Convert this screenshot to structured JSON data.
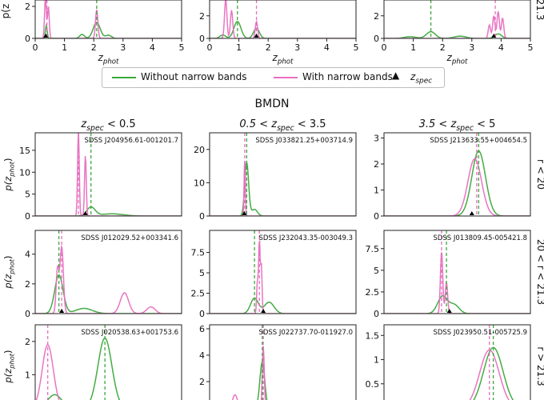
{
  "colors": {
    "green": "#3aa83a",
    "pink": "#e86ec0",
    "marker": "#000000"
  },
  "legend": {
    "items": [
      {
        "label": "Without narrow bands",
        "color": "#3aa83a",
        "kind": "line"
      },
      {
        "label": "With narrow bands",
        "color": "#e86ec0",
        "kind": "line"
      },
      {
        "label": "z",
        "sub": "spec",
        "color": "#000000",
        "kind": "triangle"
      }
    ]
  },
  "section_title": "BMDN",
  "column_headers": [
    {
      "pre": "z",
      "sub": "spec",
      "post": " < 0.5"
    },
    {
      "pre": "0.5 < z",
      "sub": "spec",
      "post": " < 3.5"
    },
    {
      "pre": "3.5 < z",
      "sub": "spec",
      "post": " < 5"
    }
  ],
  "row_labels": [
    "r < 20",
    "20 < r < 21.3",
    "r > 21.3"
  ],
  "top_row_label": "21.3",
  "ylabel": {
    "pre": "p(z",
    "sub": "phot",
    "post": ")"
  },
  "top_ylabel": "p(z",
  "xlabel": {
    "pre": "z",
    "sub": "phot"
  },
  "chart_data": [
    {
      "id": "top-1",
      "type": "line",
      "xlim": [
        0,
        5
      ],
      "ylim": [
        0,
        2.4
      ],
      "yticks": [
        0,
        2
      ],
      "xticks": [
        0,
        1,
        2,
        3,
        4,
        5
      ],
      "title": "",
      "zspec": 0.36,
      "green_peak_x": 2.1,
      "pink_peak_x": 0.4,
      "series": [
        {
          "name": "Without narrow bands",
          "color_key": "green",
          "components": [
            [
              0.38,
              0.03,
              0.8
            ],
            [
              2.1,
              0.12,
              1.0
            ],
            [
              1.6,
              0.08,
              0.25
            ],
            [
              2.5,
              0.1,
              0.2
            ]
          ]
        },
        {
          "name": "With narrow bands",
          "color_key": "pink",
          "components": [
            [
              0.35,
              0.03,
              2.6
            ],
            [
              0.45,
              0.03,
              2.0
            ],
            [
              2.1,
              0.04,
              1.8
            ]
          ]
        }
      ]
    },
    {
      "id": "top-2",
      "type": "line",
      "xlim": [
        0,
        5
      ],
      "ylim": [
        0,
        3.4
      ],
      "yticks": [
        0,
        2
      ],
      "xticks": [
        0,
        1,
        2,
        3,
        4,
        5
      ],
      "title": "",
      "zspec": 1.6,
      "green_peak_x": 0.95,
      "pink_peak_x": 1.6,
      "series": [
        {
          "name": "Without narrow bands",
          "color_key": "green",
          "components": [
            [
              0.95,
              0.12,
              1.5
            ],
            [
              1.6,
              0.1,
              0.9
            ],
            [
              0.45,
              0.1,
              0.3
            ]
          ]
        },
        {
          "name": "With narrow bands",
          "color_key": "pink",
          "components": [
            [
              0.55,
              0.04,
              3.5
            ],
            [
              0.75,
              0.04,
              2.5
            ],
            [
              1.6,
              0.04,
              1.5
            ]
          ]
        }
      ]
    },
    {
      "id": "top-3",
      "type": "line",
      "xlim": [
        0,
        5
      ],
      "ylim": [
        0,
        3.4
      ],
      "yticks": [
        0,
        2
      ],
      "xticks": [
        0,
        1,
        2,
        3,
        4,
        5
      ],
      "title": "",
      "zspec": 3.75,
      "green_peak_x": 1.6,
      "pink_peak_x": 3.8,
      "series": [
        {
          "name": "Without narrow bands",
          "color_key": "green",
          "components": [
            [
              1.6,
              0.15,
              0.6
            ],
            [
              3.9,
              0.12,
              0.4
            ],
            [
              2.6,
              0.2,
              0.2
            ],
            [
              0.9,
              0.2,
              0.15
            ]
          ]
        },
        {
          "name": "With narrow bands",
          "color_key": "pink",
          "components": [
            [
              3.75,
              0.04,
              2.0
            ],
            [
              3.9,
              0.04,
              2.4
            ],
            [
              4.05,
              0.04,
              1.8
            ],
            [
              3.6,
              0.04,
              1.2
            ]
          ]
        }
      ]
    },
    {
      "id": "bmdn-r1-c1",
      "type": "line",
      "xlim": [
        0,
        1.05
      ],
      "ylim": [
        0,
        19
      ],
      "yticks": [
        0,
        5,
        10,
        15
      ],
      "title": "SDSS J204956.61-001201.7",
      "zspec": 0.36,
      "green_peak_x": 0.4,
      "pink_peak_x": 0.31,
      "series": [
        {
          "name": "Without narrow bands",
          "color_key": "green",
          "components": [
            [
              0.4,
              0.03,
              2.0
            ],
            [
              0.55,
              0.08,
              0.5
            ]
          ]
        },
        {
          "name": "With narrow bands",
          "color_key": "pink",
          "components": [
            [
              0.31,
              0.006,
              19.5
            ],
            [
              0.36,
              0.006,
              14.0
            ]
          ]
        }
      ]
    },
    {
      "id": "bmdn-r1-c2",
      "type": "line",
      "xlim": [
        0.5,
        3.5
      ],
      "ylim": [
        0,
        25
      ],
      "yticks": [
        0,
        10,
        20
      ],
      "title": "SDSS J033821.25+003714.9",
      "zspec": 1.21,
      "green_peak_x": 1.26,
      "pink_peak_x": 1.22,
      "series": [
        {
          "name": "Without narrow bands",
          "color_key": "green",
          "components": [
            [
              1.26,
              0.04,
              16.0
            ],
            [
              1.42,
              0.06,
              2.0
            ]
          ]
        },
        {
          "name": "With narrow bands",
          "color_key": "pink",
          "components": [
            [
              1.22,
              0.012,
              18.0
            ]
          ]
        }
      ]
    },
    {
      "id": "bmdn-r1-c3",
      "type": "line",
      "xlim": [
        3.5,
        5.0
      ],
      "ylim": [
        0,
        3.2
      ],
      "yticks": [
        0,
        1,
        2,
        3
      ],
      "title": "SDSS J213633.55+004654.5",
      "zspec": 4.4,
      "green_peak_x": 4.47,
      "pink_peak_x": 4.45,
      "series": [
        {
          "name": "Without narrow bands",
          "color_key": "green",
          "components": [
            [
              4.47,
              0.07,
              2.5
            ]
          ]
        },
        {
          "name": "With narrow bands",
          "color_key": "pink",
          "components": [
            [
              4.43,
              0.07,
              2.2
            ]
          ]
        }
      ]
    },
    {
      "id": "bmdn-r2-c1",
      "type": "line",
      "xlim": [
        0,
        1.05
      ],
      "ylim": [
        0,
        5.6
      ],
      "yticks": [
        0,
        2,
        4
      ],
      "title": "SDSS J012029.52+003341.6",
      "zspec": 0.19,
      "green_peak_x": 0.17,
      "pink_peak_x": 0.19,
      "series": [
        {
          "name": "Without narrow bands",
          "color_key": "green",
          "components": [
            [
              0.17,
              0.03,
              2.6
            ],
            [
              0.35,
              0.06,
              0.35
            ]
          ]
        },
        {
          "name": "With narrow bands",
          "color_key": "pink",
          "components": [
            [
              0.19,
              0.012,
              4.5
            ],
            [
              0.16,
              0.01,
              3.0
            ],
            [
              0.64,
              0.03,
              1.4
            ],
            [
              0.83,
              0.03,
              0.45
            ]
          ]
        }
      ]
    },
    {
      "id": "bmdn-r2-c2",
      "type": "line",
      "xlim": [
        0.5,
        3.5
      ],
      "ylim": [
        0,
        10.2
      ],
      "yticks": [
        0,
        2.5,
        5,
        7.5
      ],
      "title": "SDSS J232043.35-003049.3",
      "zspec": 1.6,
      "green_peak_x": 1.42,
      "pink_peak_x": 1.52,
      "series": [
        {
          "name": "Without narrow bands",
          "color_key": "green",
          "components": [
            [
              1.42,
              0.08,
              1.9
            ],
            [
              1.72,
              0.1,
              1.4
            ]
          ]
        },
        {
          "name": "With narrow bands",
          "color_key": "pink",
          "components": [
            [
              1.52,
              0.015,
              9.0
            ],
            [
              1.56,
              0.015,
              6.0
            ],
            [
              1.48,
              0.015,
              4.0
            ]
          ]
        }
      ]
    },
    {
      "id": "bmdn-r2-c3",
      "type": "line",
      "xlim": [
        3.5,
        5.0
      ],
      "ylim": [
        0,
        9.6
      ],
      "yticks": [
        0,
        2.5,
        5,
        7.5
      ],
      "title": "SDSS J013809.45-005421.8",
      "zspec": 4.17,
      "green_peak_x": 4.14,
      "pink_peak_x": 4.09,
      "series": [
        {
          "name": "Without narrow bands",
          "color_key": "green",
          "components": [
            [
              4.1,
              0.05,
              2.0
            ],
            [
              4.22,
              0.05,
              1.0
            ]
          ]
        },
        {
          "name": "With narrow bands",
          "color_key": "pink",
          "components": [
            [
              4.09,
              0.012,
              7.2
            ],
            [
              4.14,
              0.012,
              3.6
            ]
          ]
        }
      ]
    },
    {
      "id": "bmdn-r3-c1",
      "type": "line",
      "xlim": [
        0,
        1.05
      ],
      "ylim": [
        0,
        2.5
      ],
      "yticks": [
        0,
        1,
        2
      ],
      "title": "SDSS J020538.63+001753.6",
      "zspec": 0.1,
      "green_peak_x": 0.5,
      "pink_peak_x": 0.09,
      "series": [
        {
          "name": "Without narrow bands",
          "color_key": "green",
          "components": [
            [
              0.5,
              0.05,
              2.1
            ],
            [
              0.14,
              0.05,
              0.4
            ],
            [
              0.85,
              0.08,
              0.2
            ]
          ]
        },
        {
          "name": "With narrow bands",
          "color_key": "pink",
          "components": [
            [
              0.09,
              0.04,
              1.9
            ],
            [
              0.6,
              0.06,
              0.15
            ]
          ]
        }
      ]
    },
    {
      "id": "bmdn-r3-c2",
      "type": "line",
      "xlim": [
        0.5,
        3.5
      ],
      "ylim": [
        0,
        6.3
      ],
      "yticks": [
        0,
        2,
        4,
        6
      ],
      "title": "SDSS J022737.70-011927.0",
      "zspec": 1.6,
      "green_peak_x": 1.58,
      "pink_peak_x": 1.6,
      "series": [
        {
          "name": "Without narrow bands",
          "color_key": "green",
          "components": [
            [
              1.58,
              0.05,
              3.5
            ],
            [
              1.0,
              0.1,
              0.5
            ]
          ]
        },
        {
          "name": "With narrow bands",
          "color_key": "pink",
          "components": [
            [
              1.6,
              0.02,
              4.7
            ],
            [
              1.02,
              0.05,
              1.0
            ]
          ]
        }
      ]
    },
    {
      "id": "bmdn-r3-c3",
      "type": "line",
      "xlim": [
        3.5,
        5.0
      ],
      "ylim": [
        0,
        1.72
      ],
      "yticks": [
        0,
        0.5,
        1.0,
        1.5
      ],
      "title": "SDSS J023950.51-005725.9",
      "zspec": 4.55,
      "green_peak_x": 4.62,
      "pink_peak_x": 4.58,
      "series": [
        {
          "name": "Without narrow bands",
          "color_key": "green",
          "components": [
            [
              4.62,
              0.1,
              1.25
            ],
            [
              4.0,
              0.1,
              0.15
            ]
          ]
        },
        {
          "name": "With narrow bands",
          "color_key": "pink",
          "components": [
            [
              4.58,
              0.1,
              1.2
            ]
          ]
        }
      ]
    }
  ]
}
